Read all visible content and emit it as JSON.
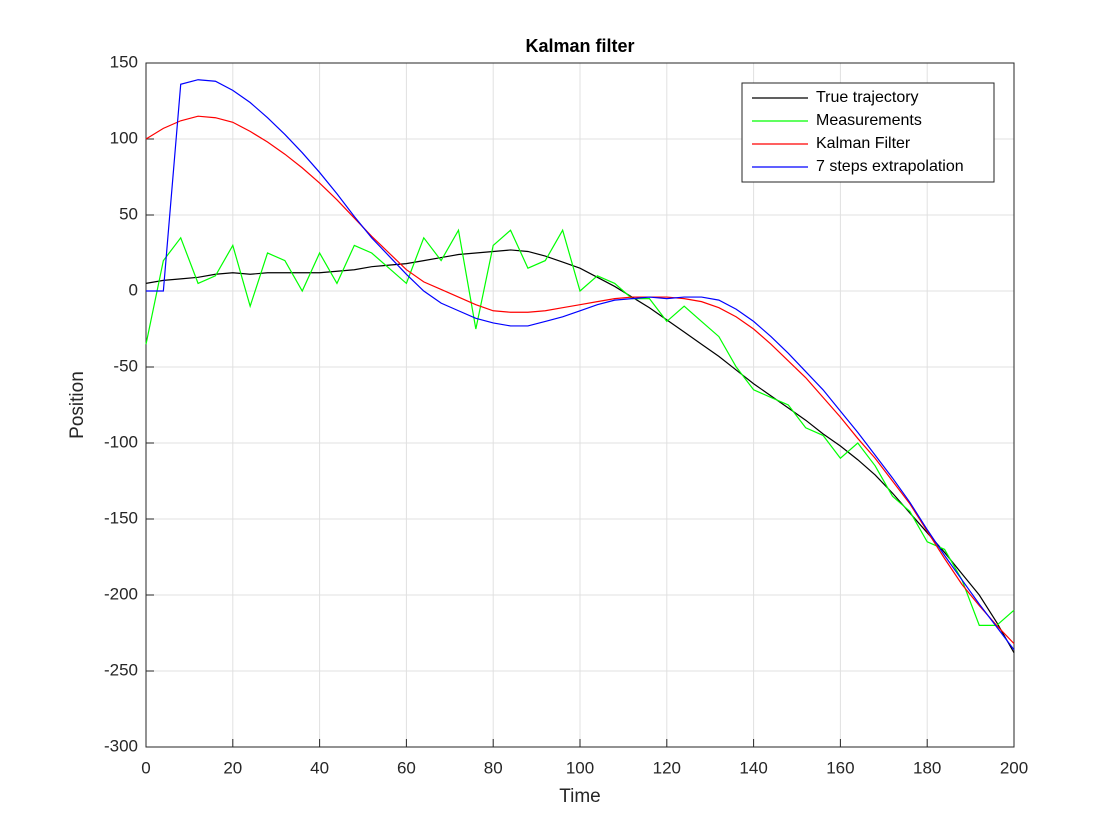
{
  "chart_data": {
    "type": "line",
    "title": "Kalman filter",
    "x_label": "Time",
    "y_label": "Position",
    "x": [
      0,
      4,
      8,
      12,
      16,
      20,
      24,
      28,
      32,
      36,
      40,
      44,
      48,
      52,
      56,
      60,
      64,
      68,
      72,
      76,
      80,
      84,
      88,
      92,
      96,
      100,
      104,
      108,
      112,
      116,
      120,
      124,
      128,
      132,
      136,
      140,
      144,
      148,
      152,
      156,
      160,
      164,
      168,
      172,
      176,
      180,
      184,
      188,
      192,
      196,
      200
    ],
    "series": [
      {
        "name": "True trajectory",
        "color": "#000000",
        "values": [
          5,
          7,
          8,
          9,
          11,
          12,
          11,
          12,
          12,
          12,
          12,
          13,
          14,
          16,
          17,
          18,
          20,
          22,
          24,
          25,
          26,
          27,
          26,
          23,
          19,
          15,
          9,
          3,
          -4,
          -11,
          -19,
          -27,
          -35,
          -43,
          -52,
          -61,
          -69,
          -77,
          -85,
          -94,
          -102,
          -111,
          -121,
          -133,
          -146,
          -159,
          -172,
          -186,
          -200,
          -218,
          -238
        ]
      },
      {
        "name": "Measurements",
        "color": "#00ff00",
        "values": [
          -35,
          20,
          35,
          5,
          10,
          30,
          -10,
          25,
          20,
          0,
          25,
          5,
          30,
          25,
          15,
          5,
          35,
          20,
          40,
          -25,
          30,
          40,
          15,
          20,
          40,
          0,
          10,
          5,
          -5,
          -5,
          -20,
          -10,
          -20,
          -30,
          -50,
          -65,
          -70,
          -75,
          -90,
          -95,
          -110,
          -100,
          -115,
          -135,
          -145,
          -165,
          -170,
          -190,
          -220,
          -220,
          -210
        ]
      },
      {
        "name": "Kalman Filter",
        "color": "#ff0000",
        "values": [
          100,
          107,
          112,
          115,
          114,
          111,
          105,
          98,
          90,
          81,
          71,
          60,
          48,
          36,
          25,
          14,
          6,
          1,
          -4,
          -9,
          -13,
          -14,
          -14,
          -13,
          -11,
          -9,
          -7,
          -5,
          -4,
          -4,
          -4,
          -5,
          -7,
          -11,
          -17,
          -25,
          -35,
          -46,
          -57,
          -70,
          -83,
          -97,
          -110,
          -125,
          -140,
          -158,
          -176,
          -193,
          -207,
          -220,
          -232
        ]
      },
      {
        "name": "7 steps extrapolation",
        "color": "#0000ff",
        "values": [
          0,
          0,
          136,
          139,
          138,
          132,
          124,
          114,
          103,
          91,
          78,
          64,
          49,
          35,
          23,
          11,
          0,
          -8,
          -13,
          -18,
          -21,
          -23,
          -23,
          -20,
          -17,
          -13,
          -9,
          -6,
          -5,
          -4,
          -5,
          -4,
          -4,
          -6,
          -12,
          -20,
          -30,
          -41,
          -53,
          -65,
          -79,
          -93,
          -108,
          -123,
          -139,
          -157,
          -174,
          -190,
          -206,
          -221,
          -236
        ]
      }
    ],
    "xlim": [
      0,
      200
    ],
    "xticks": [
      0,
      20,
      40,
      60,
      80,
      100,
      120,
      140,
      160,
      180,
      200
    ],
    "ylim": [
      -300,
      150
    ],
    "yticks": [
      -300,
      -250,
      -200,
      -150,
      -100,
      -50,
      0,
      50,
      100,
      150
    ],
    "grid": true,
    "legend": "northeast"
  }
}
